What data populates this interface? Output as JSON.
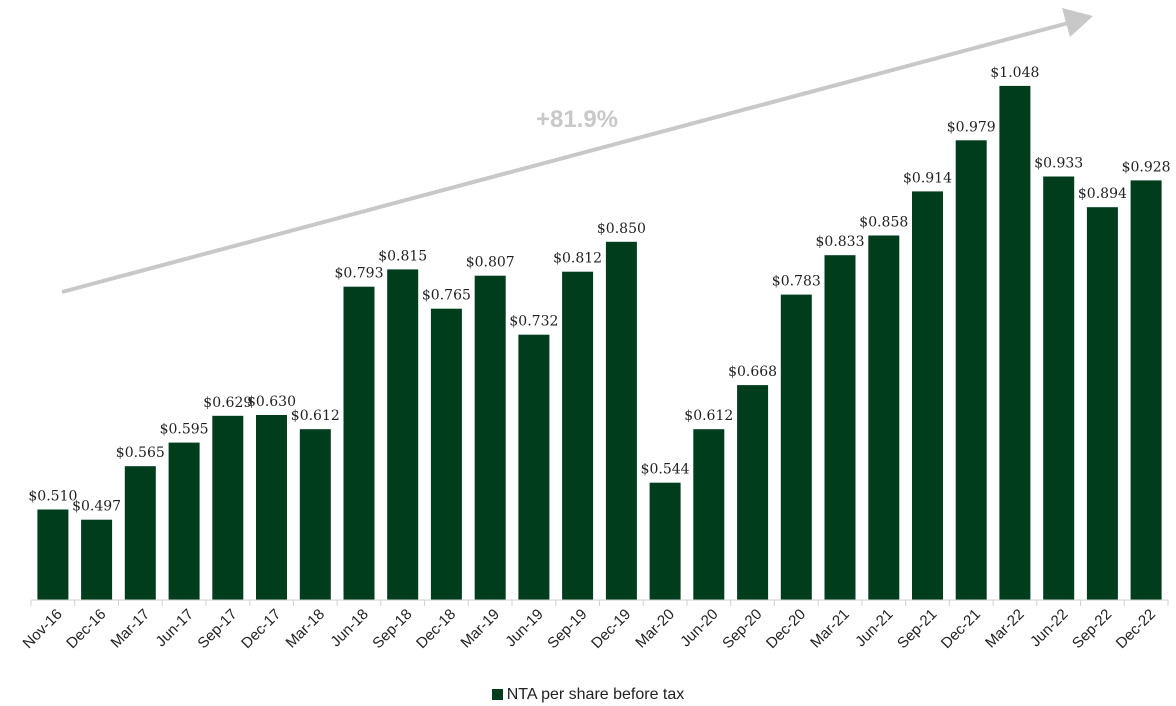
{
  "chart_data": {
    "type": "bar",
    "categories": [
      "Nov-16",
      "Dec-16",
      "Mar-17",
      "Jun-17",
      "Sep-17",
      "Dec-17",
      "Mar-18",
      "Jun-18",
      "Sep-18",
      "Dec-18",
      "Mar-19",
      "Jun-19",
      "Sep-19",
      "Dec-19",
      "Mar-20",
      "Jun-20",
      "Sep-20",
      "Dec-20",
      "Mar-21",
      "Jun-21",
      "Sep-21",
      "Dec-21",
      "Mar-22",
      "Jun-22",
      "Sep-22",
      "Dec-22"
    ],
    "series": [
      {
        "name": "NTA per share before tax",
        "values": [
          0.51,
          0.497,
          0.565,
          0.595,
          0.629,
          0.63,
          0.612,
          0.793,
          0.815,
          0.765,
          0.807,
          0.732,
          0.812,
          0.85,
          0.544,
          0.612,
          0.668,
          0.783,
          0.833,
          0.858,
          0.914,
          0.979,
          1.048,
          0.933,
          0.894,
          0.928
        ],
        "labels": [
          "$0.510",
          "$0.497",
          "$0.565",
          "$0.595",
          "$0.629",
          "$0.630",
          "$0.612",
          "$0.793",
          "$0.815",
          "$0.765",
          "$0.807",
          "$0.732",
          "$0.812",
          "$0.850",
          "$0.544",
          "$0.612",
          "$0.668",
          "$0.783",
          "$0.833",
          "$0.858",
          "$0.914",
          "$0.979",
          "$1.048",
          "$0.933",
          "$0.894",
          "$0.928"
        ],
        "color": "#003d1c"
      }
    ],
    "ylim": [
      0.395,
      1.1
    ],
    "annotation": {
      "text": "+81.9%",
      "color": "#c8c8c8"
    },
    "legend_position": "bottom",
    "grid": false
  }
}
